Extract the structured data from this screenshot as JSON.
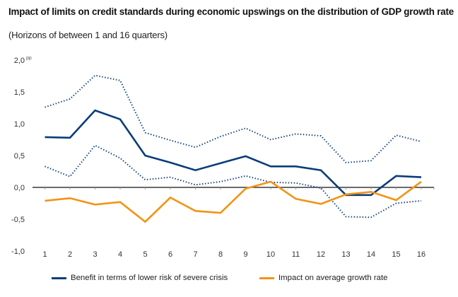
{
  "chart_data": {
    "type": "line",
    "title": "Impact of limits on credit standards during economic upswings on the distribution of GDP growth rate",
    "subtitle": "(Horizons of between 1 and 16 quarters)",
    "xlabel": "",
    "ylabel": "",
    "y_unit": "pp",
    "ylim": [
      -1.0,
      2.0
    ],
    "yticks": [
      "-1,0",
      "-0,5",
      "0,0",
      "0,5",
      "1,0",
      "1,5",
      "2,0"
    ],
    "ytick_values": [
      -1.0,
      -0.5,
      0.0,
      0.5,
      1.0,
      1.5,
      2.0
    ],
    "x": [
      1,
      2,
      3,
      4,
      5,
      6,
      7,
      8,
      9,
      10,
      11,
      12,
      13,
      14,
      15,
      16
    ],
    "xtick_labels": [
      "1",
      "2",
      "3",
      "4",
      "5",
      "6",
      "7",
      "8",
      "9",
      "10",
      "11",
      "12",
      "13",
      "14",
      "15",
      "16"
    ],
    "grid": false,
    "legend_position": "bottom",
    "series": [
      {
        "name": "Benefit in terms of lower risk of severe crisis",
        "color": "#0a3d7a",
        "style": "solid",
        "in_legend": true,
        "values": [
          0.79,
          0.78,
          1.21,
          1.07,
          0.5,
          0.39,
          0.27,
          0.38,
          0.49,
          0.33,
          0.33,
          0.27,
          -0.12,
          -0.12,
          0.18,
          0.16
        ]
      },
      {
        "name": "Benefit upper band",
        "color": "#0a3d7a",
        "style": "dotted",
        "in_legend": false,
        "values": [
          1.26,
          1.39,
          1.76,
          1.68,
          0.86,
          0.74,
          0.63,
          0.8,
          0.93,
          0.75,
          0.84,
          0.81,
          0.39,
          0.42,
          0.82,
          0.72
        ]
      },
      {
        "name": "Benefit lower band",
        "color": "#0a3d7a",
        "style": "dotted",
        "in_legend": false,
        "values": [
          0.33,
          0.17,
          0.66,
          0.46,
          0.12,
          0.16,
          0.04,
          0.09,
          0.18,
          0.08,
          0.07,
          -0.01,
          -0.46,
          -0.47,
          -0.25,
          -0.21
        ]
      },
      {
        "name": "Impact on average growth rate",
        "color": "#f39314",
        "style": "solid",
        "in_legend": true,
        "values": [
          -0.21,
          -0.17,
          -0.27,
          -0.23,
          -0.54,
          -0.16,
          -0.37,
          -0.4,
          -0.02,
          0.09,
          -0.18,
          -0.26,
          -0.11,
          -0.07,
          -0.2,
          0.09
        ]
      }
    ]
  },
  "legend": {
    "items": [
      {
        "label": "Benefit in terms of lower risk of severe crisis",
        "color": "#0a3d7a"
      },
      {
        "label": "Impact on average growth rate",
        "color": "#f39314"
      }
    ]
  }
}
